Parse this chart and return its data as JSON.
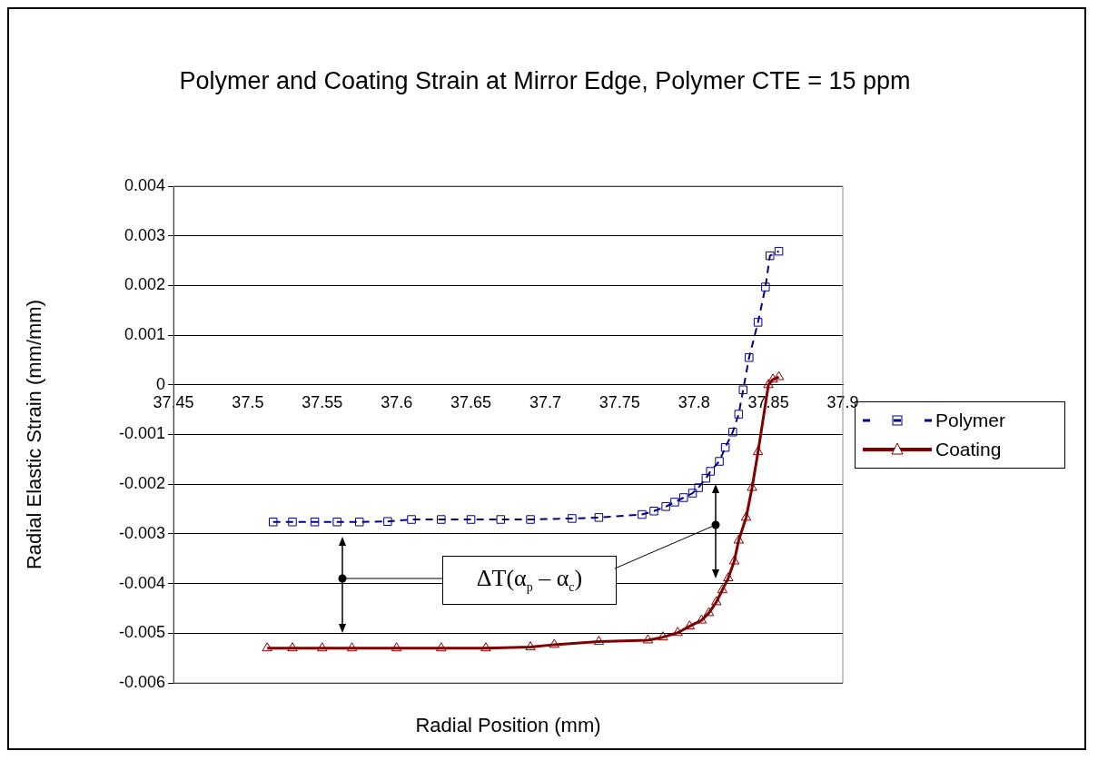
{
  "chart_data": {
    "type": "line",
    "title": "Polymer and Coating Strain at Mirror Edge, Polymer CTE = 15 ppm",
    "xlabel": "Radial Position (mm)",
    "ylabel": "Radial Elastic Strain (mm/mm)",
    "annotations": [
      "ΔT(α$_{p}$ – α$_{c}$)"
    ],
    "xlim": [
      37.45,
      37.9
    ],
    "xticks": [
      37.45,
      37.5,
      37.55,
      37.6,
      37.65,
      37.7,
      37.75,
      37.8,
      37.85,
      37.9
    ],
    "ylim": [
      -0.006,
      0.004
    ],
    "yticks": [
      -0.006,
      -0.005,
      -0.004,
      -0.003,
      -0.002,
      -0.001,
      0,
      0.001,
      0.002,
      0.003,
      0.004
    ],
    "grid": "y",
    "legend": "right",
    "series": [
      {
        "name": "Polymer",
        "color": "#000080",
        "marker": "square",
        "line_style": "dashed",
        "x": [
          37.517,
          37.53,
          37.545,
          37.56,
          37.575,
          37.594,
          37.61,
          37.63,
          37.65,
          37.67,
          37.69,
          37.718,
          37.736,
          37.765,
          37.773,
          37.781,
          37.787,
          37.793,
          37.799,
          37.803,
          37.808,
          37.811,
          37.817,
          37.821,
          37.826,
          37.83,
          37.833,
          37.837,
          37.843,
          37.848,
          37.851,
          37.857
        ],
        "values": [
          -0.00276,
          -0.00276,
          -0.00276,
          -0.00276,
          -0.00276,
          -0.00275,
          -0.00271,
          -0.00271,
          -0.00271,
          -0.00271,
          -0.00271,
          -0.00269,
          -0.00267,
          -0.00261,
          -0.00254,
          -0.00245,
          -0.00236,
          -0.00227,
          -0.00218,
          -0.00207,
          -0.00188,
          -0.00174,
          -0.00154,
          -0.00126,
          -0.00095,
          -0.00059,
          -0.0001,
          0.00055,
          0.00126,
          0.00197,
          0.0026,
          0.00269
        ]
      },
      {
        "name": "Coating",
        "color": "#800000",
        "marker": "triangle",
        "line_style": "solid",
        "x": [
          37.513,
          37.53,
          37.55,
          37.57,
          37.6,
          37.63,
          37.66,
          37.69,
          37.706,
          37.736,
          37.769,
          37.779,
          37.789,
          37.797,
          37.805,
          37.81,
          37.815,
          37.819,
          37.823,
          37.827,
          37.83,
          37.835,
          37.839,
          37.843,
          37.85,
          37.853,
          37.857
        ],
        "values": [
          -0.0053,
          -0.0053,
          -0.0053,
          -0.0053,
          -0.0053,
          -0.0053,
          -0.0053,
          -0.00528,
          -0.00523,
          -0.00517,
          -0.00514,
          -0.00508,
          -0.00499,
          -0.00486,
          -0.00474,
          -0.00459,
          -0.00437,
          -0.00413,
          -0.00389,
          -0.00355,
          -0.00313,
          -0.00267,
          -0.00207,
          -0.00135,
          0,
          0.00011,
          0.00016
        ]
      }
    ]
  }
}
